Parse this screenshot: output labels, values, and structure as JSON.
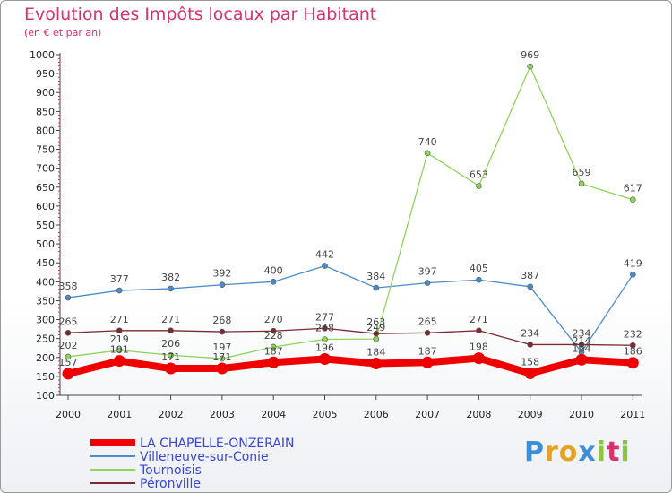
{
  "header": {
    "title": "Evolution des Impôts locaux par Habitant",
    "subtitle": "(en € et par an)"
  },
  "logo": {
    "letters": [
      "P",
      "r",
      "o",
      "x",
      "i",
      "t",
      "i"
    ],
    "colors": [
      "#3f8fd8",
      "#e8a020",
      "#e8a020",
      "#3f8fd8",
      "#8cc63f",
      "#d6326e",
      "#8cc63f"
    ]
  },
  "chart_data": {
    "type": "line",
    "title": "Evolution des Impôts locaux par Habitant",
    "subtitle": "(en € et par an)",
    "xlabel": "",
    "ylabel": "",
    "x": [
      "2000",
      "2001",
      "2002",
      "2003",
      "2004",
      "2005",
      "2006",
      "2007",
      "2008",
      "2009",
      "2010",
      "2011"
    ],
    "ylim": [
      100,
      1000
    ],
    "yticks": [
      100,
      150,
      200,
      250,
      300,
      350,
      400,
      450,
      500,
      550,
      600,
      650,
      700,
      750,
      800,
      850,
      900,
      950,
      1000
    ],
    "grid": false,
    "legend_position": "bottom-left",
    "series": [
      {
        "name": "LA CHAPELLE-ONZERAIN",
        "color": "#ee0000",
        "values": [
          157,
          191,
          171,
          171,
          187,
          196,
          184,
          187,
          198,
          158,
          194,
          186
        ]
      },
      {
        "name": "Villeneuve-sur-Conie",
        "color": "#4a8cc9",
        "values": [
          358,
          377,
          382,
          392,
          400,
          442,
          384,
          397,
          405,
          387,
          214,
          419
        ]
      },
      {
        "name": "Tournoisis",
        "color": "#8ed45a",
        "values": [
          202,
          219,
          206,
          197,
          228,
          248,
          249,
          740,
          653,
          969,
          659,
          617
        ]
      },
      {
        "name": "Péronville",
        "color": "#7b2a30",
        "values": [
          265,
          271,
          271,
          268,
          270,
          277,
          263,
          265,
          271,
          234,
          234,
          232
        ]
      }
    ]
  }
}
